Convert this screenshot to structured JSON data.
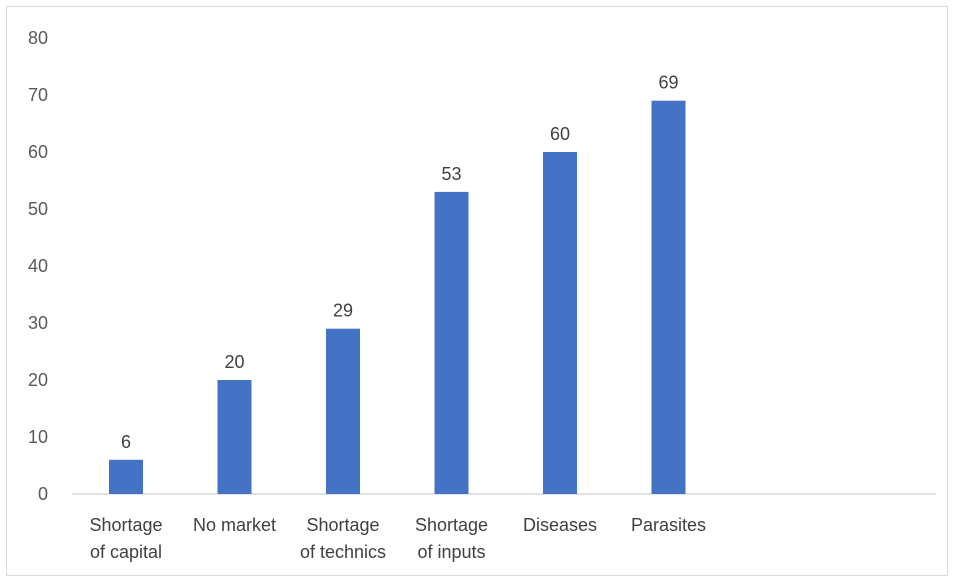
{
  "chart_data": {
    "type": "bar",
    "categories": [
      [
        "Shortage",
        "of capital"
      ],
      [
        "No market"
      ],
      [
        "Shortage",
        "of technics"
      ],
      [
        "Shortage",
        "of inputs"
      ],
      [
        "Diseases"
      ],
      [
        "Parasites"
      ]
    ],
    "values": [
      6,
      20,
      29,
      53,
      60,
      69
    ],
    "title": "",
    "xlabel": "",
    "ylabel": "",
    "ylim": [
      0,
      80
    ],
    "yticks": [
      0,
      10,
      20,
      30,
      40,
      50,
      60,
      70,
      80
    ],
    "grid": false,
    "legend": "none",
    "bar_color": "#4472c4",
    "axis_color": "#d9d9d9"
  }
}
